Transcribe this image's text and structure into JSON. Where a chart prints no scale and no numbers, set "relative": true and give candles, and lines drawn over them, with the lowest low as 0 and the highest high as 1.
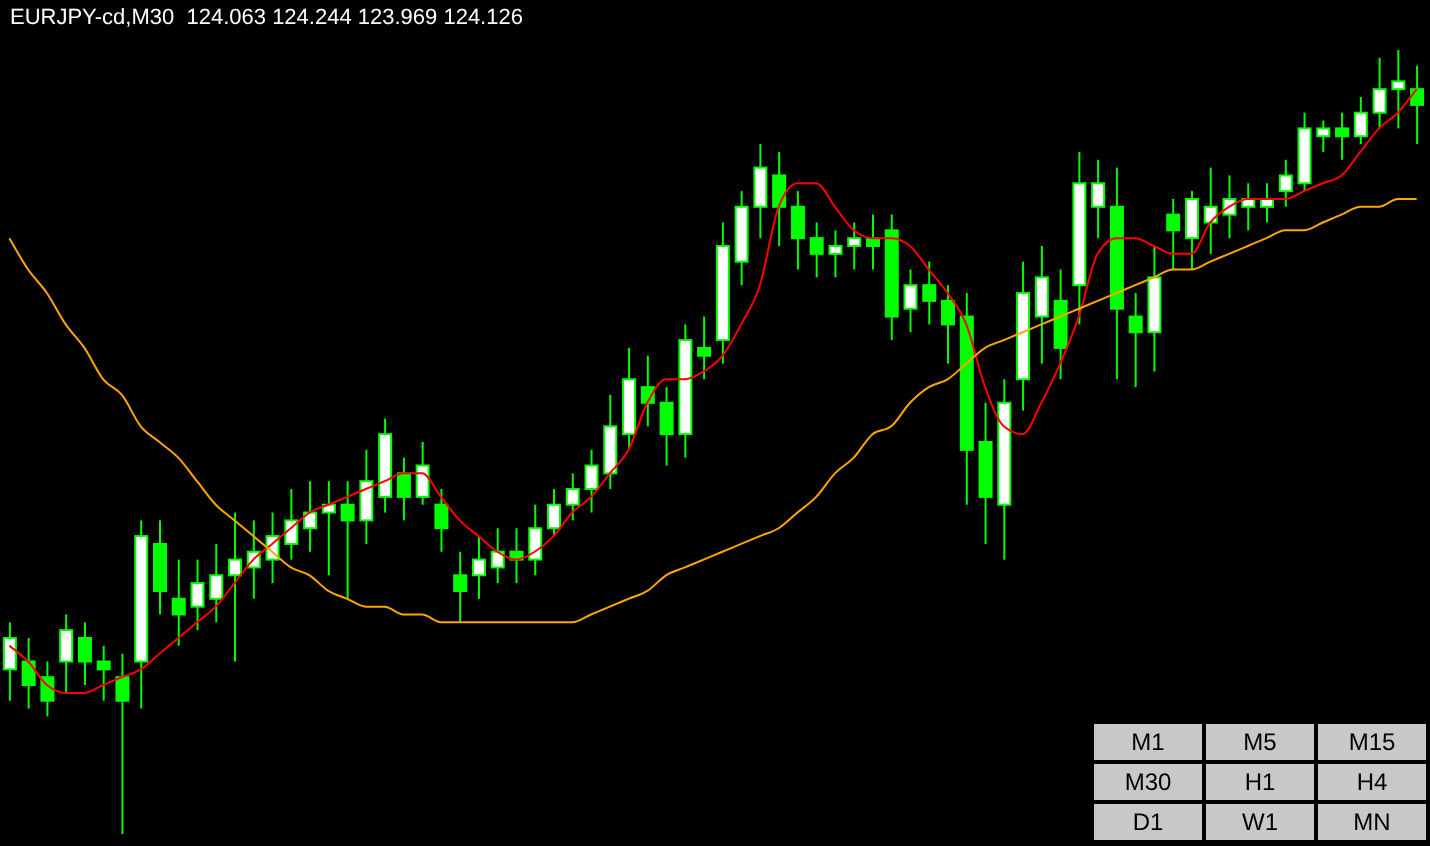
{
  "chart_data": {
    "type": "candlestick",
    "title": "EURJPY-cd,M30",
    "subtitle": "124.063 124.244 123.969 124.126",
    "relative": true,
    "color": "#00ff00",
    "grid": false,
    "legend": false,
    "categories": [
      null,
      null,
      null,
      null,
      null,
      null,
      null,
      null,
      null,
      null,
      null,
      null,
      null,
      null,
      null,
      null,
      null,
      null,
      null,
      null,
      null,
      null,
      null,
      null,
      null,
      null,
      null,
      null,
      null,
      null,
      null,
      null,
      null,
      null,
      null,
      null,
      null,
      null,
      null,
      null,
      null,
      null,
      null,
      null,
      null,
      null,
      null,
      null,
      null,
      null,
      null,
      null,
      null,
      null,
      null,
      null,
      null,
      null,
      null,
      null,
      null,
      null,
      null,
      null,
      null,
      null,
      null,
      null,
      null,
      null,
      null,
      null,
      null,
      null,
      null,
      null
    ],
    "ohlc": [
      [
        0.21,
        0.27,
        0.17,
        0.25
      ],
      [
        0.22,
        0.25,
        0.16,
        0.19
      ],
      [
        0.2,
        0.22,
        0.15,
        0.17
      ],
      [
        0.22,
        0.28,
        0.18,
        0.26
      ],
      [
        0.25,
        0.27,
        0.19,
        0.22
      ],
      [
        0.22,
        0.24,
        0.17,
        0.21
      ],
      [
        0.2,
        0.23,
        0.0,
        0.17
      ],
      [
        0.22,
        0.4,
        0.16,
        0.38
      ],
      [
        0.37,
        0.4,
        0.28,
        0.31
      ],
      [
        0.3,
        0.35,
        0.24,
        0.28
      ],
      [
        0.29,
        0.35,
        0.26,
        0.32
      ],
      [
        0.3,
        0.37,
        0.27,
        0.33
      ],
      [
        0.33,
        0.41,
        0.22,
        0.35
      ],
      [
        0.34,
        0.4,
        0.3,
        0.36
      ],
      [
        0.35,
        0.41,
        0.32,
        0.38
      ],
      [
        0.37,
        0.44,
        0.35,
        0.4
      ],
      [
        0.39,
        0.45,
        0.36,
        0.41
      ],
      [
        0.41,
        0.45,
        0.33,
        0.42
      ],
      [
        0.42,
        0.45,
        0.3,
        0.4
      ],
      [
        0.4,
        0.49,
        0.37,
        0.45
      ],
      [
        0.43,
        0.53,
        0.41,
        0.51
      ],
      [
        0.46,
        0.48,
        0.4,
        0.43
      ],
      [
        0.43,
        0.5,
        0.42,
        0.47
      ],
      [
        0.42,
        0.44,
        0.36,
        0.39
      ],
      [
        0.33,
        0.36,
        0.27,
        0.31
      ],
      [
        0.33,
        0.38,
        0.3,
        0.35
      ],
      [
        0.34,
        0.39,
        0.32,
        0.36
      ],
      [
        0.36,
        0.39,
        0.32,
        0.35
      ],
      [
        0.35,
        0.42,
        0.33,
        0.39
      ],
      [
        0.39,
        0.44,
        0.38,
        0.42
      ],
      [
        0.42,
        0.46,
        0.4,
        0.44
      ],
      [
        0.44,
        0.49,
        0.41,
        0.47
      ],
      [
        0.46,
        0.56,
        0.44,
        0.52
      ],
      [
        0.51,
        0.62,
        0.49,
        0.58
      ],
      [
        0.57,
        0.61,
        0.52,
        0.55
      ],
      [
        0.55,
        0.57,
        0.47,
        0.51
      ],
      [
        0.51,
        0.65,
        0.48,
        0.63
      ],
      [
        0.62,
        0.66,
        0.58,
        0.61
      ],
      [
        0.63,
        0.78,
        0.6,
        0.75
      ],
      [
        0.73,
        0.82,
        0.7,
        0.8
      ],
      [
        0.8,
        0.88,
        0.76,
        0.85
      ],
      [
        0.84,
        0.87,
        0.75,
        0.8
      ],
      [
        0.8,
        0.82,
        0.72,
        0.76
      ],
      [
        0.76,
        0.78,
        0.71,
        0.74
      ],
      [
        0.74,
        0.77,
        0.71,
        0.75
      ],
      [
        0.75,
        0.78,
        0.72,
        0.76
      ],
      [
        0.76,
        0.79,
        0.72,
        0.75
      ],
      [
        0.77,
        0.79,
        0.63,
        0.66
      ],
      [
        0.67,
        0.72,
        0.64,
        0.7
      ],
      [
        0.7,
        0.73,
        0.65,
        0.68
      ],
      [
        0.68,
        0.7,
        0.6,
        0.65
      ],
      [
        0.66,
        0.69,
        0.42,
        0.49
      ],
      [
        0.5,
        0.55,
        0.37,
        0.43
      ],
      [
        0.42,
        0.58,
        0.35,
        0.55
      ],
      [
        0.58,
        0.73,
        0.54,
        0.69
      ],
      [
        0.66,
        0.75,
        0.6,
        0.71
      ],
      [
        0.68,
        0.72,
        0.58,
        0.62
      ],
      [
        0.7,
        0.87,
        0.65,
        0.83
      ],
      [
        0.8,
        0.86,
        0.76,
        0.83
      ],
      [
        0.8,
        0.85,
        0.58,
        0.67
      ],
      [
        0.66,
        0.69,
        0.57,
        0.64
      ],
      [
        0.64,
        0.75,
        0.59,
        0.71
      ],
      [
        0.79,
        0.81,
        0.72,
        0.77
      ],
      [
        0.76,
        0.82,
        0.72,
        0.81
      ],
      [
        0.78,
        0.85,
        0.74,
        0.8
      ],
      [
        0.79,
        0.84,
        0.76,
        0.81
      ],
      [
        0.8,
        0.83,
        0.77,
        0.81
      ],
      [
        0.8,
        0.83,
        0.78,
        0.81
      ],
      [
        0.82,
        0.86,
        0.8,
        0.84
      ],
      [
        0.83,
        0.92,
        0.82,
        0.9
      ],
      [
        0.89,
        0.91,
        0.87,
        0.9
      ],
      [
        0.9,
        0.92,
        0.86,
        0.89
      ],
      [
        0.89,
        0.94,
        0.88,
        0.92
      ],
      [
        0.92,
        0.99,
        0.9,
        0.95
      ],
      [
        0.95,
        1.0,
        0.9,
        0.96
      ],
      [
        0.95,
        0.98,
        0.88,
        0.93
      ]
    ],
    "series": [
      {
        "type": "line",
        "color": "#ff0000",
        "values": [
          0.24,
          0.22,
          0.19,
          0.18,
          0.18,
          0.19,
          0.2,
          0.21,
          0.23,
          0.25,
          0.27,
          0.29,
          0.32,
          0.35,
          0.37,
          0.39,
          0.41,
          0.42,
          0.43,
          0.44,
          0.45,
          0.46,
          0.46,
          0.43,
          0.4,
          0.38,
          0.36,
          0.35,
          0.36,
          0.38,
          0.41,
          0.43,
          0.46,
          0.49,
          0.55,
          0.58,
          0.58,
          0.59,
          0.61,
          0.65,
          0.7,
          0.8,
          0.83,
          0.83,
          0.8,
          0.77,
          0.76,
          0.76,
          0.75,
          0.72,
          0.69,
          0.65,
          0.57,
          0.52,
          0.51,
          0.55,
          0.6,
          0.66,
          0.74,
          0.76,
          0.76,
          0.75,
          0.74,
          0.74,
          0.78,
          0.8,
          0.81,
          0.81,
          0.81,
          0.82,
          0.83,
          0.84,
          0.87,
          0.9,
          0.92,
          0.95
        ]
      },
      {
        "type": "line",
        "color": "#ffa500",
        "values": [
          0.76,
          0.72,
          0.69,
          0.65,
          0.62,
          0.58,
          0.56,
          0.52,
          0.5,
          0.48,
          0.45,
          0.42,
          0.4,
          0.38,
          0.36,
          0.34,
          0.33,
          0.31,
          0.3,
          0.29,
          0.29,
          0.28,
          0.28,
          0.27,
          0.27,
          0.27,
          0.27,
          0.27,
          0.27,
          0.27,
          0.27,
          0.28,
          0.29,
          0.3,
          0.31,
          0.33,
          0.34,
          0.35,
          0.36,
          0.37,
          0.38,
          0.39,
          0.41,
          0.43,
          0.46,
          0.48,
          0.51,
          0.52,
          0.55,
          0.57,
          0.58,
          0.6,
          0.62,
          0.63,
          0.64,
          0.65,
          0.66,
          0.67,
          0.68,
          0.69,
          0.7,
          0.71,
          0.72,
          0.72,
          0.73,
          0.74,
          0.75,
          0.76,
          0.77,
          0.77,
          0.78,
          0.79,
          0.8,
          0.8,
          0.81,
          0.81
        ]
      }
    ],
    "annotations": [
      "M1",
      "M5",
      "M15",
      "M30",
      "H1",
      "H4",
      "D1",
      "W1",
      "MN"
    ]
  }
}
